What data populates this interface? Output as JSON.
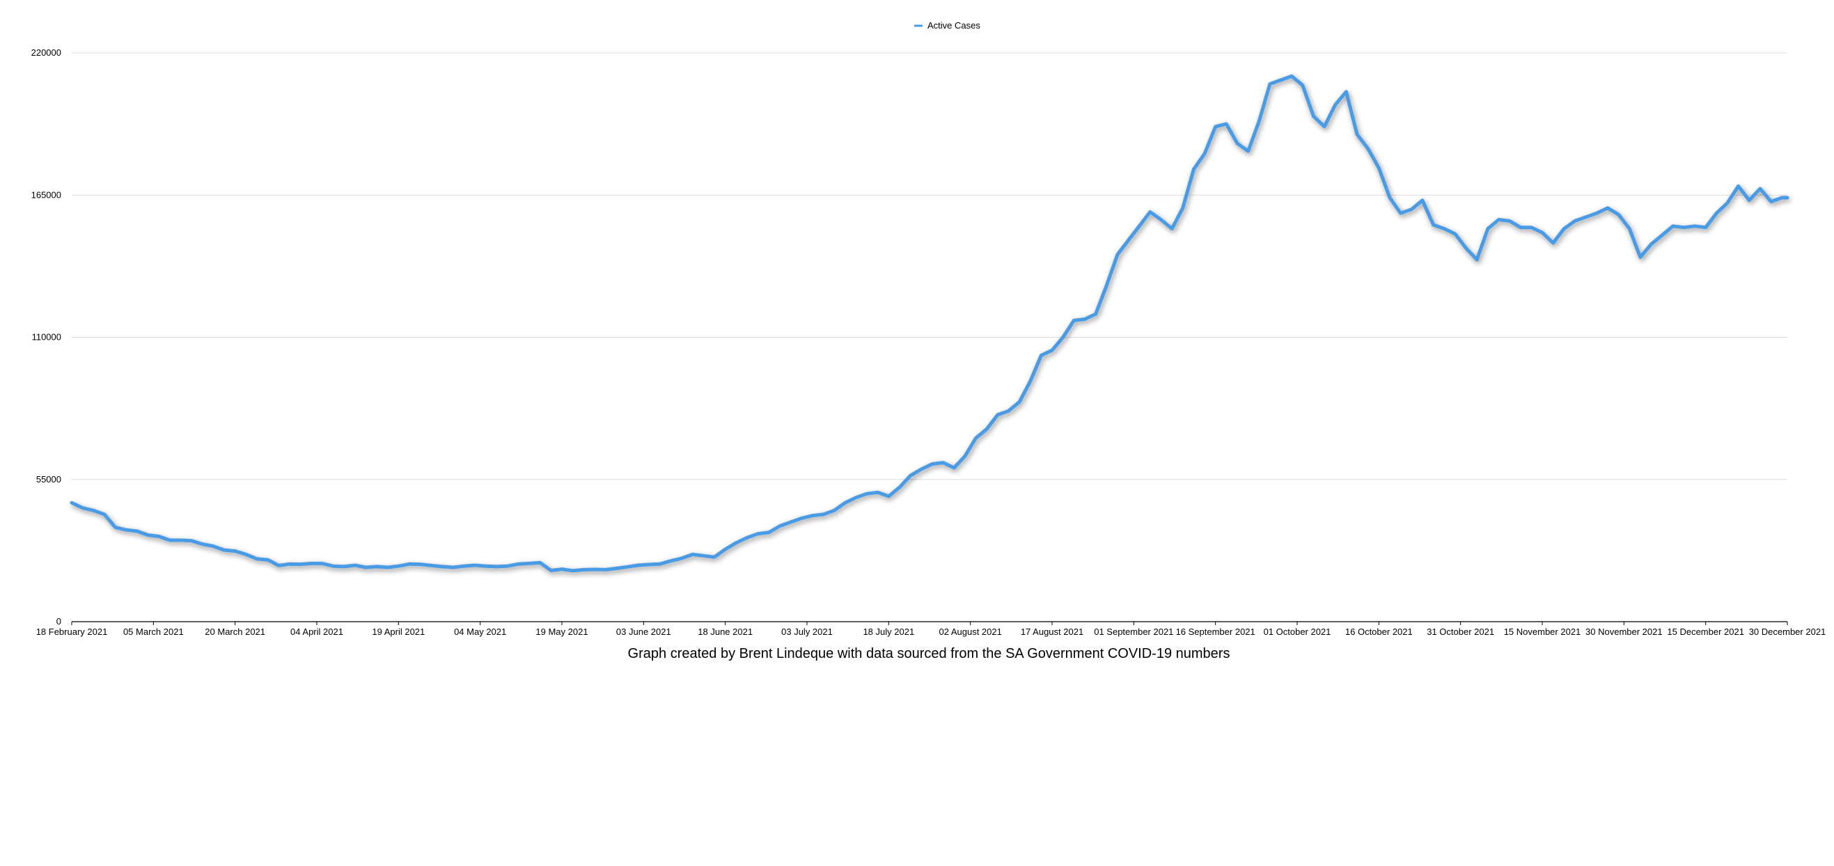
{
  "chart_data": {
    "type": "line",
    "title": "",
    "xlabel": "",
    "ylabel": "",
    "caption": "Graph created by Brent Lindeque with data sourced from the SA Government COVID-19 numbers",
    "legend": {
      "placement": "top-center",
      "entries": [
        "Active Cases"
      ]
    },
    "grid": true,
    "x_range": [
      "2021-02-18",
      "2021-12-30"
    ],
    "ylim": [
      0,
      220000
    ],
    "y_ticks": [
      "0",
      "55000",
      "110000",
      "165000",
      "220000"
    ],
    "x_ticks": [
      {
        "date": "2021-02-18",
        "label": "18 February 2021"
      },
      {
        "date": "2021-03-05",
        "label": "05 March 2021"
      },
      {
        "date": "2021-03-20",
        "label": "20 March 2021"
      },
      {
        "date": "2021-04-04",
        "label": "04 April 2021"
      },
      {
        "date": "2021-04-19",
        "label": "19 April 2021"
      },
      {
        "date": "2021-05-04",
        "label": "04 May 2021"
      },
      {
        "date": "2021-05-19",
        "label": "19 May 2021"
      },
      {
        "date": "2021-06-03",
        "label": "03 June 2021"
      },
      {
        "date": "2021-06-18",
        "label": "18 June 2021"
      },
      {
        "date": "2021-07-03",
        "label": "03 July 2021"
      },
      {
        "date": "2021-07-18",
        "label": "18 July 2021"
      },
      {
        "date": "2021-08-02",
        "label": "02 August 2021"
      },
      {
        "date": "2021-08-17",
        "label": "17 August 2021"
      },
      {
        "date": "2021-09-01",
        "label": "01 September 2021"
      },
      {
        "date": "2021-09-16",
        "label": "16 September 2021"
      },
      {
        "date": "2021-10-01",
        "label": "01 October 2021"
      },
      {
        "date": "2021-10-16",
        "label": "16 October 2021"
      },
      {
        "date": "2021-10-31",
        "label": "31 October 2021"
      },
      {
        "date": "2021-11-15",
        "label": "15 November 2021"
      },
      {
        "date": "2021-11-30",
        "label": "30 November 2021"
      },
      {
        "date": "2021-12-15",
        "label": "15 December 2021"
      },
      {
        "date": "2021-12-30",
        "label": "30 December 2021"
      }
    ],
    "series": [
      {
        "name": "Active Cases",
        "color": "#4a9be6",
        "points": [
          [
            "2021-02-18",
            46000
          ],
          [
            "2021-02-20",
            44000
          ],
          [
            "2021-02-22",
            43000
          ],
          [
            "2021-02-24",
            41500
          ],
          [
            "2021-02-26",
            36500
          ],
          [
            "2021-02-28",
            35500
          ],
          [
            "2021-03-02",
            35000
          ],
          [
            "2021-03-04",
            33500
          ],
          [
            "2021-03-06",
            33000
          ],
          [
            "2021-03-08",
            31500
          ],
          [
            "2021-03-10",
            31500
          ],
          [
            "2021-03-12",
            31300
          ],
          [
            "2021-03-14",
            30000
          ],
          [
            "2021-03-16",
            29200
          ],
          [
            "2021-03-18",
            27700
          ],
          [
            "2021-03-20",
            27300
          ],
          [
            "2021-03-22",
            26000
          ],
          [
            "2021-03-24",
            24300
          ],
          [
            "2021-03-26",
            23900
          ],
          [
            "2021-03-28",
            21700
          ],
          [
            "2021-03-30",
            22300
          ],
          [
            "2021-04-01",
            22200
          ],
          [
            "2021-04-03",
            22500
          ],
          [
            "2021-04-05",
            22500
          ],
          [
            "2021-04-07",
            21500
          ],
          [
            "2021-04-09",
            21300
          ],
          [
            "2021-04-11",
            21800
          ],
          [
            "2021-04-13",
            21000
          ],
          [
            "2021-04-15",
            21300
          ],
          [
            "2021-04-17",
            21000
          ],
          [
            "2021-04-19",
            21500
          ],
          [
            "2021-04-21",
            22300
          ],
          [
            "2021-04-23",
            22200
          ],
          [
            "2021-04-25",
            21700
          ],
          [
            "2021-04-27",
            21300
          ],
          [
            "2021-04-29",
            21000
          ],
          [
            "2021-05-01",
            21500
          ],
          [
            "2021-05-03",
            21800
          ],
          [
            "2021-05-05",
            21500
          ],
          [
            "2021-05-07",
            21300
          ],
          [
            "2021-05-09",
            21500
          ],
          [
            "2021-05-11",
            22300
          ],
          [
            "2021-05-13",
            22500
          ],
          [
            "2021-05-15",
            22800
          ],
          [
            "2021-05-17",
            19800
          ],
          [
            "2021-05-19",
            20300
          ],
          [
            "2021-05-21",
            19700
          ],
          [
            "2021-05-23",
            20100
          ],
          [
            "2021-05-25",
            20200
          ],
          [
            "2021-05-27",
            20100
          ],
          [
            "2021-05-29",
            20600
          ],
          [
            "2021-05-31",
            21200
          ],
          [
            "2021-06-02",
            21800
          ],
          [
            "2021-06-04",
            22100
          ],
          [
            "2021-06-06",
            22300
          ],
          [
            "2021-06-08",
            23500
          ],
          [
            "2021-06-10",
            24500
          ],
          [
            "2021-06-12",
            26000
          ],
          [
            "2021-06-14",
            25500
          ],
          [
            "2021-06-16",
            25000
          ],
          [
            "2021-06-18",
            28000
          ],
          [
            "2021-06-20",
            30500
          ],
          [
            "2021-06-22",
            32500
          ],
          [
            "2021-06-24",
            34000
          ],
          [
            "2021-06-26",
            34500
          ],
          [
            "2021-06-28",
            37000
          ],
          [
            "2021-06-30",
            38500
          ],
          [
            "2021-07-02",
            40000
          ],
          [
            "2021-07-04",
            41000
          ],
          [
            "2021-07-06",
            41500
          ],
          [
            "2021-07-08",
            43000
          ],
          [
            "2021-07-10",
            46000
          ],
          [
            "2021-07-12",
            48000
          ],
          [
            "2021-07-14",
            49500
          ],
          [
            "2021-07-16",
            50000
          ],
          [
            "2021-07-18",
            48500
          ],
          [
            "2021-07-20",
            52000
          ],
          [
            "2021-07-22",
            56500
          ],
          [
            "2021-07-24",
            59000
          ],
          [
            "2021-07-26",
            61000
          ],
          [
            "2021-07-28",
            61500
          ],
          [
            "2021-07-30",
            59500
          ],
          [
            "2021-08-01",
            64000
          ],
          [
            "2021-08-03",
            71000
          ],
          [
            "2021-08-05",
            74500
          ],
          [
            "2021-08-07",
            80000
          ],
          [
            "2021-08-09",
            81500
          ],
          [
            "2021-08-11",
            85000
          ],
          [
            "2021-08-13",
            93000
          ],
          [
            "2021-08-15",
            103000
          ],
          [
            "2021-08-17",
            105000
          ],
          [
            "2021-08-19",
            110000
          ],
          [
            "2021-08-21",
            116500
          ],
          [
            "2021-08-23",
            117000
          ],
          [
            "2021-08-25",
            119000
          ],
          [
            "2021-08-27",
            130000
          ],
          [
            "2021-08-29",
            142000
          ],
          [
            "2021-08-31",
            147500
          ],
          [
            "2021-09-02",
            153000
          ],
          [
            "2021-09-04",
            158500
          ],
          [
            "2021-09-06",
            155500
          ],
          [
            "2021-09-08",
            152000
          ],
          [
            "2021-09-10",
            160000
          ],
          [
            "2021-09-12",
            175000
          ],
          [
            "2021-09-14",
            181000
          ],
          [
            "2021-09-16",
            191500
          ],
          [
            "2021-09-18",
            192500
          ],
          [
            "2021-09-20",
            185000
          ],
          [
            "2021-09-22",
            182000
          ],
          [
            "2021-09-24",
            193500
          ],
          [
            "2021-09-26",
            208000
          ],
          [
            "2021-09-28",
            209500
          ],
          [
            "2021-09-30",
            211000
          ],
          [
            "2021-10-02",
            207500
          ],
          [
            "2021-10-04",
            195500
          ],
          [
            "2021-10-06",
            191500
          ],
          [
            "2021-10-08",
            200000
          ],
          [
            "2021-10-10",
            205000
          ],
          [
            "2021-10-12",
            188500
          ],
          [
            "2021-10-14",
            183000
          ],
          [
            "2021-10-16",
            175500
          ],
          [
            "2021-10-18",
            164000
          ],
          [
            "2021-10-20",
            158000
          ],
          [
            "2021-10-22",
            159500
          ],
          [
            "2021-10-24",
            163000
          ],
          [
            "2021-10-26",
            153500
          ],
          [
            "2021-10-28",
            152000
          ],
          [
            "2021-10-30",
            150000
          ],
          [
            "2021-11-01",
            144500
          ],
          [
            "2021-11-03",
            140000
          ],
          [
            "2021-11-05",
            152000
          ],
          [
            "2021-11-07",
            155500
          ],
          [
            "2021-11-09",
            155000
          ],
          [
            "2021-11-11",
            152500
          ],
          [
            "2021-11-13",
            152500
          ],
          [
            "2021-11-15",
            150500
          ],
          [
            "2021-11-17",
            146500
          ],
          [
            "2021-11-19",
            152000
          ],
          [
            "2021-11-21",
            155000
          ],
          [
            "2021-11-23",
            156500
          ],
          [
            "2021-11-25",
            158000
          ],
          [
            "2021-11-27",
            160000
          ],
          [
            "2021-11-29",
            157500
          ],
          [
            "2021-12-01",
            152000
          ],
          [
            "2021-12-03",
            141000
          ],
          [
            "2021-12-05",
            146000
          ],
          [
            "2021-12-07",
            149500
          ],
          [
            "2021-12-09",
            153000
          ],
          [
            "2021-12-11",
            152500
          ],
          [
            "2021-12-13",
            153000
          ],
          [
            "2021-12-15",
            152500
          ],
          [
            "2021-12-17",
            158000
          ],
          [
            "2021-12-19",
            162000
          ],
          [
            "2021-12-21",
            168500
          ],
          [
            "2021-12-23",
            163000
          ],
          [
            "2021-12-25",
            167500
          ],
          [
            "2021-12-27",
            162500
          ],
          [
            "2021-12-29",
            164000
          ],
          [
            "2021-12-30",
            164000
          ]
        ]
      }
    ]
  }
}
